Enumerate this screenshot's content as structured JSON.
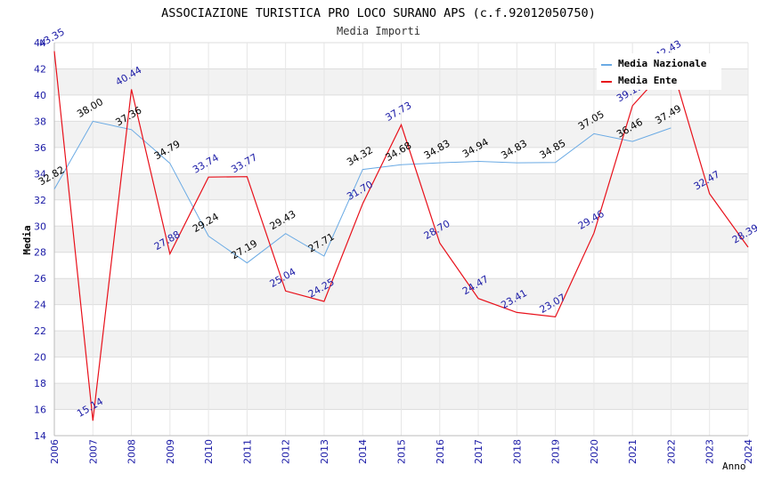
{
  "chart_data": {
    "type": "line",
    "title": "ASSOCIAZIONE TURISTICA PRO LOCO SURANO APS (c.f.92012050750)",
    "subtitle": "Media Importi",
    "xlabel": "Anno",
    "ylabel": "Media",
    "ylim": [
      14,
      44
    ],
    "ytick_step": 2,
    "grid": true,
    "legend_position": "top-right",
    "x": [
      "2006",
      "2007",
      "2008",
      "2009",
      "2010",
      "2011",
      "2012",
      "2013",
      "2014",
      "2015",
      "2016",
      "2017",
      "2018",
      "2019",
      "2020",
      "2021",
      "2022",
      "2023",
      "2024"
    ],
    "series": [
      {
        "name": "Media Nazionale",
        "color": "#6aaae4",
        "label_color": "#000000",
        "values": [
          32.82,
          38.0,
          37.36,
          34.79,
          29.24,
          27.19,
          29.43,
          27.71,
          34.32,
          34.68,
          34.83,
          34.94,
          34.83,
          34.85,
          37.05,
          36.46,
          37.49,
          null,
          null
        ]
      },
      {
        "name": "Media Ente",
        "color": "#e8101a",
        "label_color": "#1a1aa6",
        "values": [
          43.35,
          15.14,
          40.44,
          27.88,
          33.74,
          33.77,
          25.04,
          24.25,
          31.7,
          37.73,
          28.7,
          24.47,
          23.41,
          23.07,
          29.46,
          39.19,
          42.43,
          32.47,
          28.39
        ]
      }
    ]
  }
}
